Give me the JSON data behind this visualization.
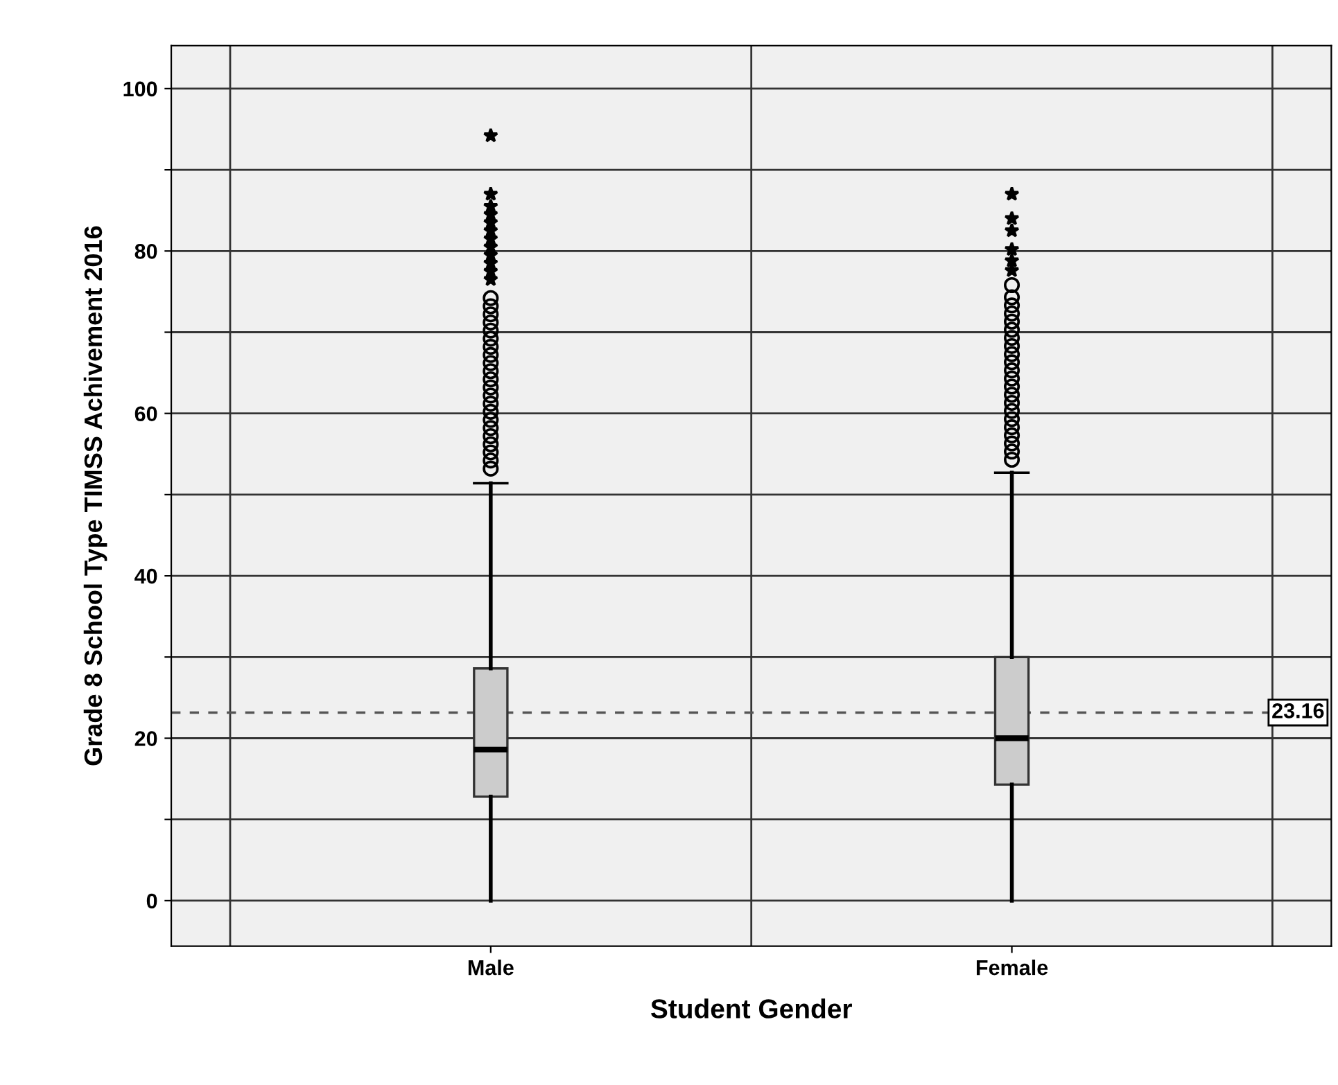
{
  "chart_data": {
    "type": "box",
    "xlabel": "Student Gender",
    "ylabel": "Grade 8 School Type TIMSS Achivement 2016",
    "categories": [
      "Male",
      "Female"
    ],
    "boxes": [
      {
        "low": 0,
        "q1": 12.8,
        "median": 18.6,
        "q3": 28.6,
        "high": 51.4,
        "outliers": [
          53.2,
          54.2,
          55.2,
          56.2,
          57.2,
          58.2,
          59.2,
          60.2,
          61.2,
          62.2,
          63.2,
          64.2,
          65.2,
          66.2,
          67.2,
          68.2,
          69.2,
          70.2,
          71.2,
          72.2,
          73.2,
          74.2,
          76.5,
          77.5,
          78.5,
          79.5,
          80.5,
          81.5,
          82.5,
          83.5,
          84.5,
          85.5,
          87.0,
          94.2
        ]
      },
      {
        "low": 0,
        "q1": 14.3,
        "median": 20.0,
        "q3": 30.0,
        "high": 52.7,
        "outliers": [
          54.3,
          55.3,
          56.3,
          57.3,
          58.3,
          59.3,
          60.3,
          61.3,
          62.3,
          63.3,
          64.3,
          65.3,
          66.3,
          67.3,
          68.3,
          69.3,
          70.3,
          71.3,
          72.3,
          73.3,
          74.3,
          75.8,
          77.6,
          78.8,
          80.2,
          82.5,
          84.0,
          87.0
        ]
      }
    ],
    "ylim": [
      -5.6,
      105.3
    ],
    "yticks": [
      0,
      {
        "value": 10,
        "label": null
      },
      20,
      {
        "value": 30,
        "label": null
      },
      40,
      {
        "value": 50,
        "label": null
      },
      60,
      {
        "value": 70,
        "label": null
      },
      80,
      {
        "value": 90,
        "label": null
      },
      100
    ],
    "grid": true,
    "ref_lines": [
      {
        "axis": "y",
        "value": 23.16,
        "label": "23.16",
        "color": "#555555",
        "line_style": "dashed"
      }
    ]
  }
}
